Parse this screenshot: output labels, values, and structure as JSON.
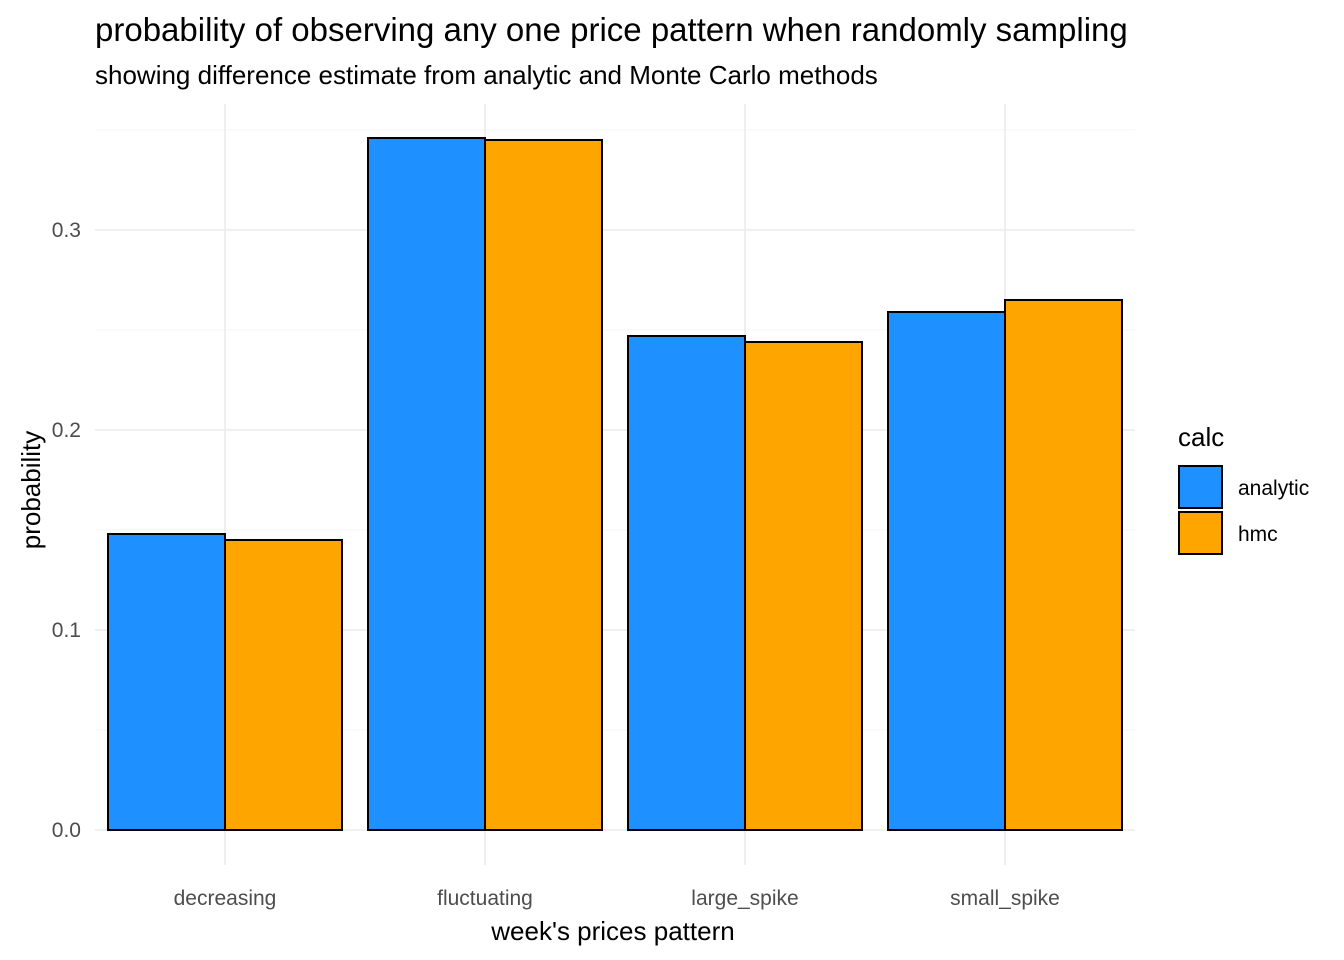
{
  "chart_data": {
    "type": "bar",
    "title": "probability of observing any one price pattern when randomly sampling",
    "subtitle": "showing difference estimate from analytic and Monte Carlo methods",
    "xlabel": "week's prices pattern",
    "ylabel": "probability",
    "categories": [
      "decreasing",
      "fluctuating",
      "large_spike",
      "small_spike"
    ],
    "series": [
      {
        "name": "analytic",
        "color": "#1E90FF",
        "values": [
          0.148,
          0.346,
          0.247,
          0.259
        ]
      },
      {
        "name": "hmc",
        "color": "#FFA500",
        "values": [
          0.145,
          0.345,
          0.244,
          0.265
        ]
      }
    ],
    "ylim": [
      -0.0175,
      0.363
    ],
    "y_ticks": [
      0.0,
      0.1,
      0.2,
      0.3
    ],
    "y_tick_labels": [
      "0.0",
      "0.1",
      "0.2",
      "0.3"
    ],
    "y_minor_ticks": [
      0.05,
      0.15,
      0.25,
      0.35
    ],
    "grid": true,
    "legend": {
      "title": "calc",
      "position": "right"
    }
  }
}
